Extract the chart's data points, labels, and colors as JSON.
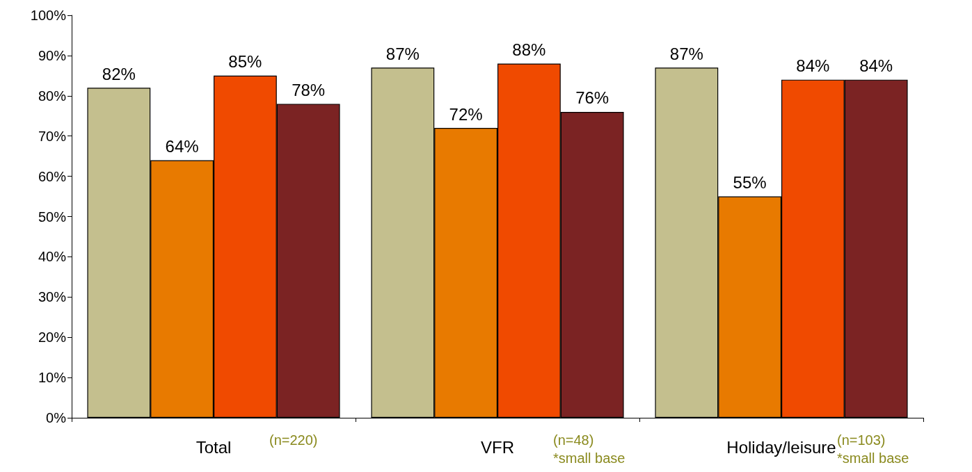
{
  "chart_data": {
    "type": "bar",
    "categories": [
      "Total",
      "VFR",
      "Holiday/leisure"
    ],
    "series": [
      {
        "color": "#c4bf8e",
        "values": [
          82,
          87,
          87
        ],
        "value_labels": [
          "82%",
          "87%",
          "87%"
        ]
      },
      {
        "color": "#e87a00",
        "values": [
          64,
          72,
          55
        ],
        "value_labels": [
          "64%",
          "72%",
          "55%"
        ]
      },
      {
        "color": "#f04a00",
        "values": [
          85,
          88,
          84
        ],
        "value_labels": [
          "85%",
          "88%",
          "84%"
        ]
      },
      {
        "color": "#7b2323",
        "values": [
          78,
          76,
          84
        ],
        "value_labels": [
          "78%",
          "76%",
          "84%"
        ]
      }
    ],
    "ylim": [
      0,
      100
    ],
    "yticks": [
      {
        "value": 0,
        "label": "0%"
      },
      {
        "value": 10,
        "label": "10%"
      },
      {
        "value": 20,
        "label": "20%"
      },
      {
        "value": 30,
        "label": "30%"
      },
      {
        "value": 40,
        "label": "40%"
      },
      {
        "value": 50,
        "label": "50%"
      },
      {
        "value": 60,
        "label": "60%"
      },
      {
        "value": 70,
        "label": "70%"
      },
      {
        "value": 80,
        "label": "80%"
      },
      {
        "value": 90,
        "label": "90%"
      },
      {
        "value": 100,
        "label": "100%"
      }
    ],
    "annotations": [
      "(n=220)",
      "(n=48)\n*small base",
      "(n=103)\n*small base"
    ],
    "grid": false
  }
}
